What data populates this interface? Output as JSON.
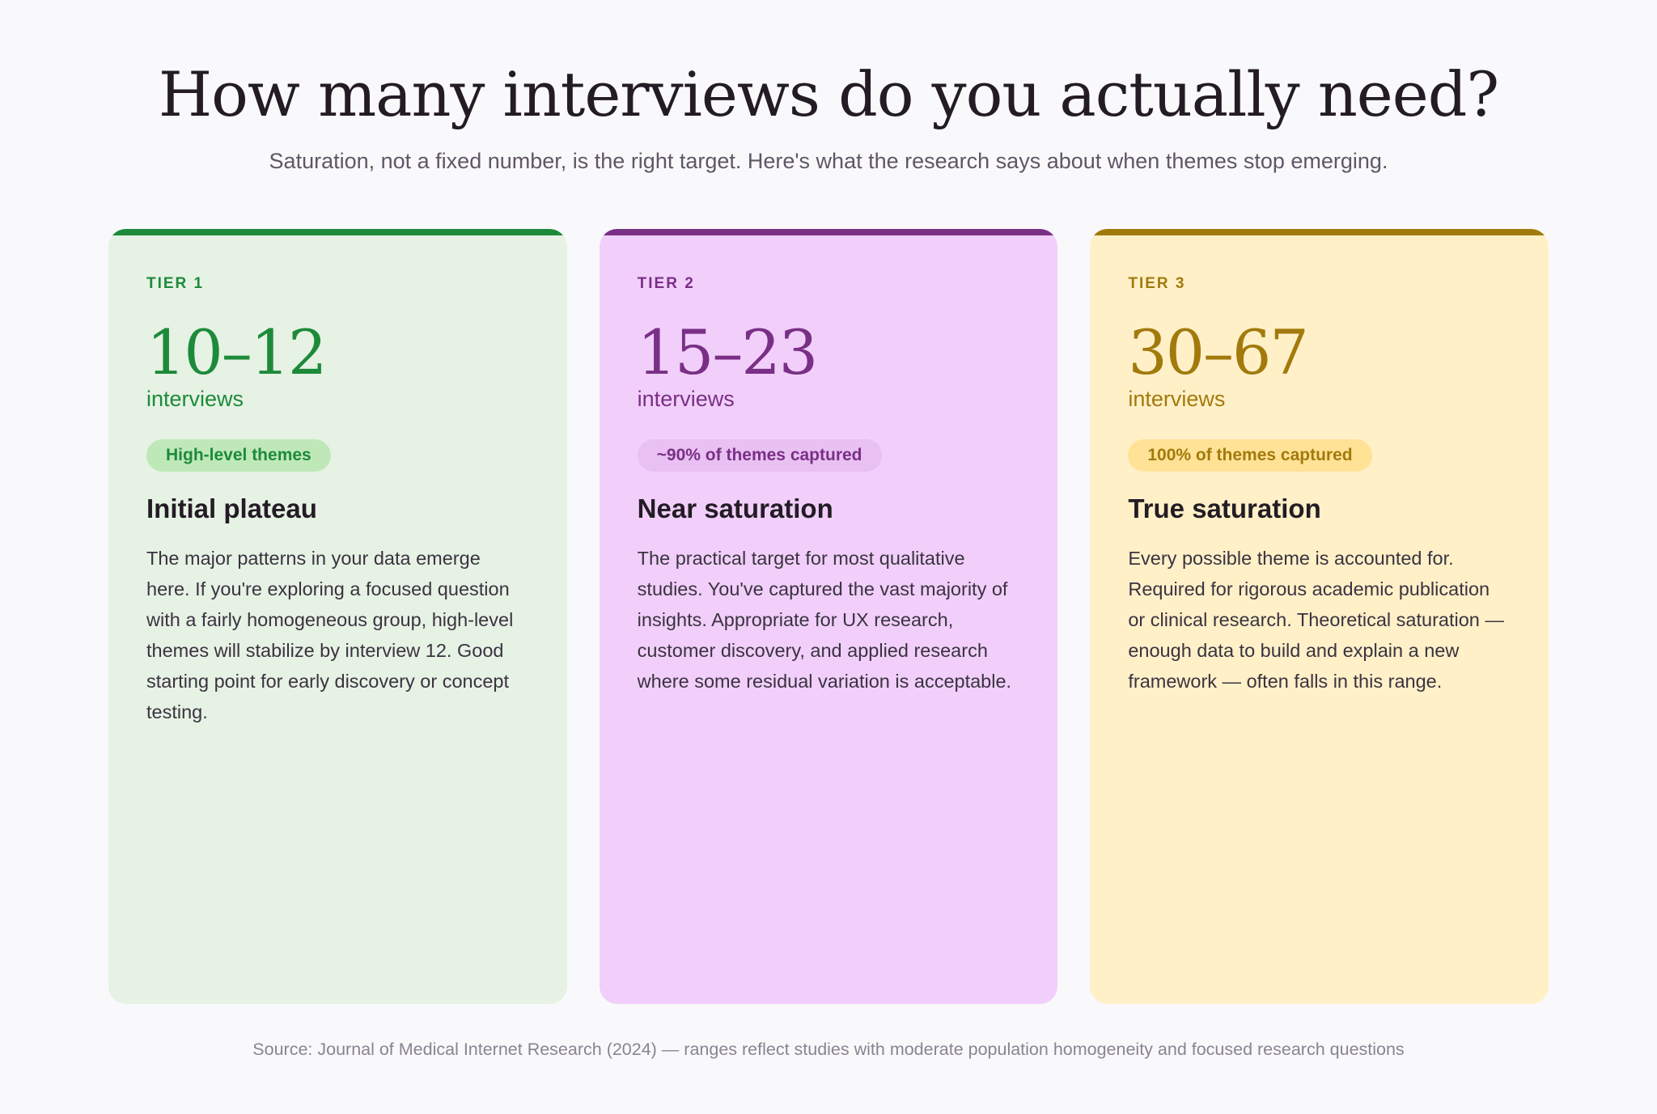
{
  "header": {
    "title": "How many interviews do you actually need?",
    "subtitle": "Saturation, not a fixed number, is the right target. Here's what the research says about when themes stop emerging."
  },
  "colors": {
    "tier1_accent": "#1d8a3a",
    "tier1_bg": "#e6f2e4",
    "tier2_accent": "#7a2f86",
    "tier2_bg": "#f1cffa",
    "tier3_accent": "#a27a0c",
    "tier3_bg": "#fff0c8"
  },
  "tiers": [
    {
      "tier_label": "TIER 1",
      "range": "10–12",
      "unit": "interviews",
      "badge": "High-level themes",
      "title": "Initial plateau",
      "body": "The major patterns in your data emerge here. If you're exploring a focused question with a fairly homogeneous group, high-level themes will stabilize by interview 12. Good starting point for early discovery or concept testing."
    },
    {
      "tier_label": "TIER 2",
      "range": "15–23",
      "unit": "interviews",
      "badge": "~90% of themes captured",
      "title": "Near saturation",
      "body": "The practical target for most qualitative studies. You've captured the vast majority of insights. Appropriate for UX research, customer discovery, and applied research where some residual variation is acceptable."
    },
    {
      "tier_label": "TIER 3",
      "range": "30–67",
      "unit": "interviews",
      "badge": "100% of themes captured",
      "title": "True saturation",
      "body": "Every possible theme is accounted for. Required for rigorous academic publication or clinical research. Theoretical saturation — enough data to build and explain a new framework — often falls in this range."
    }
  ],
  "footer": {
    "source": "Source: Journal of Medical Internet Research (2024) — ranges reflect studies with moderate population homogeneity and focused research questions"
  }
}
